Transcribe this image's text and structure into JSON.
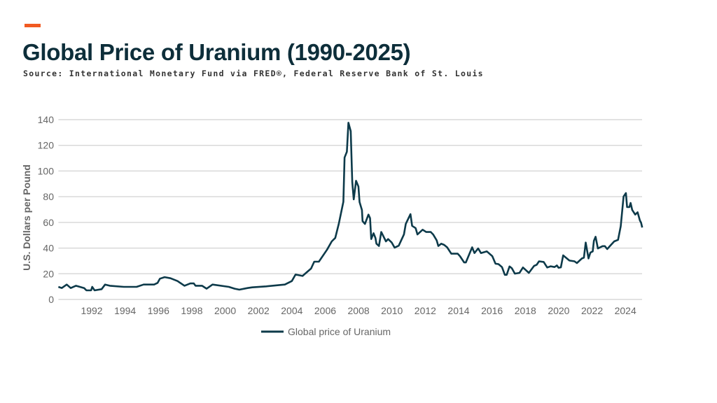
{
  "header": {
    "title": "Global Price of Uranium (1990-2025)",
    "source": "Source: International Monetary Fund via FRED®, Federal Reserve Bank of St. Louis",
    "accent_color": "#f15a22",
    "title_color": "#0d2e3a"
  },
  "chart_data": {
    "type": "line",
    "title": "",
    "xlabel": "",
    "ylabel": "U.S. Dollars per Pound",
    "xlim": [
      1990,
      2025
    ],
    "ylim": [
      0,
      140
    ],
    "yticks": [
      "0",
      "20",
      "40",
      "60",
      "80",
      "100",
      "120",
      "140"
    ],
    "xticks": [
      "1992",
      "1994",
      "1996",
      "1998",
      "2000",
      "2002",
      "2004",
      "2006",
      "2008",
      "2010",
      "2012",
      "2014",
      "2016",
      "2018",
      "2020",
      "2022",
      "2024"
    ],
    "grid": "horizontal",
    "legend_position": "bottom",
    "line_color": "#0d3a4a",
    "series": [
      {
        "name": "Global price of Uranium",
        "points": [
          [
            1990.0,
            9.8
          ],
          [
            1990.2,
            8.9
          ],
          [
            1990.5,
            11.6
          ],
          [
            1990.74,
            8.9
          ],
          [
            1991.05,
            10.7
          ],
          [
            1991.54,
            8.9
          ],
          [
            1991.68,
            7.1
          ],
          [
            1991.96,
            7.1
          ],
          [
            1992.03,
            9.8
          ],
          [
            1992.17,
            7.1
          ],
          [
            1992.59,
            8.0
          ],
          [
            1992.8,
            11.6
          ],
          [
            1993.08,
            10.7
          ],
          [
            1993.92,
            9.8
          ],
          [
            1994.69,
            9.8
          ],
          [
            1995.11,
            11.6
          ],
          [
            1995.74,
            11.6
          ],
          [
            1995.95,
            12.9
          ],
          [
            1996.09,
            16.2
          ],
          [
            1996.37,
            17.4
          ],
          [
            1996.72,
            16.5
          ],
          [
            1997.14,
            14.3
          ],
          [
            1997.56,
            10.7
          ],
          [
            1997.91,
            12.5
          ],
          [
            1998.12,
            12.5
          ],
          [
            1998.22,
            10.7
          ],
          [
            1998.61,
            10.7
          ],
          [
            1998.89,
            8.4
          ],
          [
            1999.24,
            11.6
          ],
          [
            2000.22,
            9.8
          ],
          [
            2000.57,
            8.4
          ],
          [
            2000.85,
            7.6
          ],
          [
            2001.34,
            8.9
          ],
          [
            2001.62,
            9.4
          ],
          [
            2002.46,
            10.2
          ],
          [
            2003.58,
            11.6
          ],
          [
            2004.0,
            14.3
          ],
          [
            2004.22,
            19.4
          ],
          [
            2004.64,
            18.3
          ],
          [
            2004.85,
            20.7
          ],
          [
            2005.15,
            24.0
          ],
          [
            2005.34,
            29.4
          ],
          [
            2005.62,
            29.4
          ],
          [
            2006.11,
            38.8
          ],
          [
            2006.39,
            45.2
          ],
          [
            2006.6,
            47.9
          ],
          [
            2006.81,
            58.8
          ],
          [
            2007.09,
            76.1
          ],
          [
            2007.16,
            110.5
          ],
          [
            2007.3,
            115
          ],
          [
            2007.39,
            137.6
          ],
          [
            2007.53,
            131
          ],
          [
            2007.62,
            91.3
          ],
          [
            2007.71,
            77.9
          ],
          [
            2007.85,
            92.4
          ],
          [
            2007.99,
            87.9
          ],
          [
            2008.06,
            75.9
          ],
          [
            2008.2,
            69.7
          ],
          [
            2008.24,
            61
          ],
          [
            2008.38,
            58.8
          ],
          [
            2008.59,
            66.1
          ],
          [
            2008.69,
            63.3
          ],
          [
            2008.76,
            47
          ],
          [
            2008.9,
            51.6
          ],
          [
            2009.01,
            47.9
          ],
          [
            2009.07,
            43.4
          ],
          [
            2009.22,
            41.6
          ],
          [
            2009.36,
            52.5
          ],
          [
            2009.64,
            45.2
          ],
          [
            2009.77,
            47
          ],
          [
            2009.99,
            44.3
          ],
          [
            2010.16,
            40.3
          ],
          [
            2010.41,
            41.9
          ],
          [
            2010.72,
            50.6
          ],
          [
            2010.83,
            58.8
          ],
          [
            2011.11,
            66.4
          ],
          [
            2011.21,
            57.3
          ],
          [
            2011.42,
            55.5
          ],
          [
            2011.53,
            50.6
          ],
          [
            2011.84,
            54.3
          ],
          [
            2012.05,
            52.5
          ],
          [
            2012.33,
            52.5
          ],
          [
            2012.47,
            50.6
          ],
          [
            2012.68,
            46.1
          ],
          [
            2012.78,
            41.6
          ],
          [
            2012.96,
            43.4
          ],
          [
            2013.13,
            42.5
          ],
          [
            2013.31,
            40.6
          ],
          [
            2013.56,
            35.6
          ],
          [
            2013.94,
            35.7
          ],
          [
            2014.08,
            33.7
          ],
          [
            2014.33,
            28.8
          ],
          [
            2014.43,
            28.8
          ],
          [
            2014.81,
            40.6
          ],
          [
            2014.95,
            36.1
          ],
          [
            2015.17,
            39.7
          ],
          [
            2015.34,
            36.1
          ],
          [
            2015.69,
            37.4
          ],
          [
            2016.02,
            33.7
          ],
          [
            2016.21,
            27.9
          ],
          [
            2016.39,
            27.5
          ],
          [
            2016.6,
            25.2
          ],
          [
            2016.77,
            19.2
          ],
          [
            2016.88,
            19.2
          ],
          [
            2017.05,
            25.7
          ],
          [
            2017.19,
            24.3
          ],
          [
            2017.37,
            20.1
          ],
          [
            2017.65,
            20.7
          ],
          [
            2017.86,
            24.9
          ],
          [
            2018.21,
            20.7
          ],
          [
            2018.52,
            26.1
          ],
          [
            2018.68,
            27.0
          ],
          [
            2018.82,
            29.7
          ],
          [
            2019.1,
            29.2
          ],
          [
            2019.31,
            24.9
          ],
          [
            2019.52,
            25.8
          ],
          [
            2019.75,
            25.2
          ],
          [
            2019.89,
            26.5
          ],
          [
            2019.99,
            24.7
          ],
          [
            2020.13,
            25.0
          ],
          [
            2020.27,
            34.3
          ],
          [
            2020.64,
            30.3
          ],
          [
            2020.95,
            29.7
          ],
          [
            2021.09,
            28.3
          ],
          [
            2021.39,
            31.9
          ],
          [
            2021.51,
            32.5
          ],
          [
            2021.62,
            44.3
          ],
          [
            2021.79,
            31.9
          ],
          [
            2021.9,
            36.5
          ],
          [
            2022.04,
            37.4
          ],
          [
            2022.11,
            45.7
          ],
          [
            2022.21,
            48.8
          ],
          [
            2022.35,
            39.7
          ],
          [
            2022.63,
            41.5
          ],
          [
            2022.77,
            41.5
          ],
          [
            2022.91,
            39.2
          ],
          [
            2023.07,
            41.5
          ],
          [
            2023.33,
            45.2
          ],
          [
            2023.56,
            46.4
          ],
          [
            2023.72,
            57
          ],
          [
            2023.89,
            80.2
          ],
          [
            2024.03,
            82.8
          ],
          [
            2024.1,
            71.9
          ],
          [
            2024.24,
            71.9
          ],
          [
            2024.31,
            75.1
          ],
          [
            2024.41,
            69.7
          ],
          [
            2024.59,
            66.1
          ],
          [
            2024.73,
            67.9
          ],
          [
            2024.87,
            61.5
          ],
          [
            2024.94,
            59.7
          ],
          [
            2025.01,
            56.0
          ]
        ]
      }
    ]
  }
}
